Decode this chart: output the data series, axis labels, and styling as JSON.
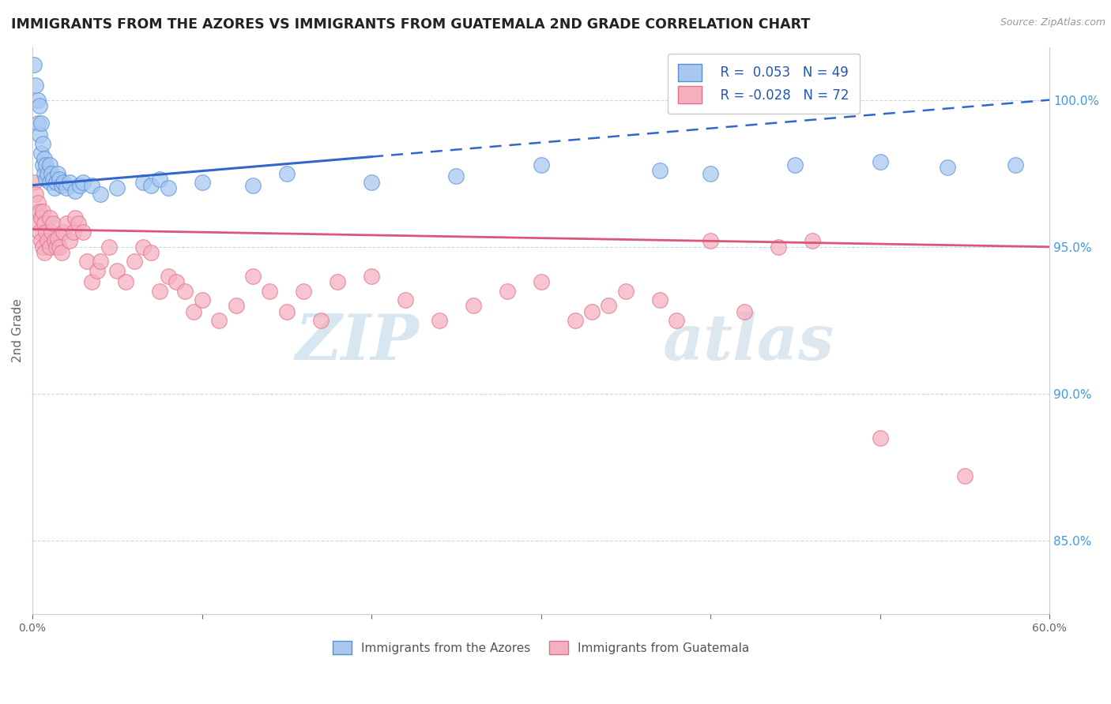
{
  "title": "IMMIGRANTS FROM THE AZORES VS IMMIGRANTS FROM GUATEMALA 2ND GRADE CORRELATION CHART",
  "source": "Source: ZipAtlas.com",
  "ylabel": "2nd Grade",
  "xmin": 0.0,
  "xmax": 60.0,
  "ymin": 82.5,
  "ymax": 101.8,
  "yticks_right": [
    85.0,
    90.0,
    95.0,
    100.0
  ],
  "blue_R": 0.053,
  "blue_N": 49,
  "pink_R": -0.028,
  "pink_N": 72,
  "blue_color": "#A8C8F0",
  "pink_color": "#F5B0C0",
  "blue_edge_color": "#5590D8",
  "pink_edge_color": "#E07090",
  "blue_line_color": "#3366CC",
  "pink_line_color": "#DD5577",
  "watermark_zip": "ZIP",
  "watermark_atlas": "atlas",
  "blue_trend_x0": 0.0,
  "blue_trend_y0": 97.1,
  "blue_trend_x1": 60.0,
  "blue_trend_y1": 100.0,
  "blue_solid_end": 20.0,
  "pink_trend_x0": 0.0,
  "pink_trend_y0": 95.6,
  "pink_trend_x1": 60.0,
  "pink_trend_y1": 95.0,
  "blue_scatter_x": [
    0.1,
    0.2,
    0.3,
    0.3,
    0.4,
    0.4,
    0.5,
    0.5,
    0.6,
    0.6,
    0.7,
    0.7,
    0.8,
    0.8,
    0.9,
    1.0,
    1.0,
    1.1,
    1.2,
    1.3,
    1.4,
    1.5,
    1.6,
    1.7,
    1.8,
    2.0,
    2.2,
    2.5,
    2.8,
    3.0,
    3.5,
    4.0,
    5.0,
    6.5,
    7.0,
    7.5,
    8.0,
    10.0,
    13.0,
    15.0,
    20.0,
    25.0,
    30.0,
    37.0,
    40.0,
    45.0,
    50.0,
    54.0,
    58.0
  ],
  "blue_scatter_y": [
    101.2,
    100.5,
    100.0,
    99.2,
    99.8,
    98.8,
    99.2,
    98.2,
    98.5,
    97.8,
    98.0,
    97.5,
    97.8,
    97.3,
    97.5,
    97.8,
    97.2,
    97.5,
    97.3,
    97.0,
    97.2,
    97.5,
    97.3,
    97.1,
    97.2,
    97.0,
    97.2,
    96.9,
    97.1,
    97.2,
    97.1,
    96.8,
    97.0,
    97.2,
    97.1,
    97.3,
    97.0,
    97.2,
    97.1,
    97.5,
    97.2,
    97.4,
    97.8,
    97.6,
    97.5,
    97.8,
    97.9,
    97.7,
    97.8
  ],
  "pink_scatter_x": [
    0.1,
    0.2,
    0.3,
    0.3,
    0.4,
    0.4,
    0.5,
    0.5,
    0.6,
    0.6,
    0.7,
    0.7,
    0.8,
    0.9,
    1.0,
    1.0,
    1.1,
    1.2,
    1.3,
    1.4,
    1.5,
    1.6,
    1.7,
    1.8,
    2.0,
    2.2,
    2.4,
    2.5,
    2.7,
    3.0,
    3.2,
    3.5,
    3.8,
    4.0,
    4.5,
    5.0,
    5.5,
    6.0,
    6.5,
    7.0,
    7.5,
    8.0,
    8.5,
    9.0,
    9.5,
    10.0,
    11.0,
    12.0,
    13.0,
    14.0,
    15.0,
    16.0,
    17.0,
    18.0,
    20.0,
    22.0,
    24.0,
    26.0,
    28.0,
    30.0,
    32.0,
    33.0,
    34.0,
    35.0,
    37.0,
    38.0,
    40.0,
    42.0,
    44.0,
    46.0,
    50.0,
    55.0
  ],
  "pink_scatter_y": [
    97.2,
    96.8,
    96.5,
    95.8,
    96.2,
    95.5,
    96.0,
    95.2,
    96.2,
    95.0,
    95.8,
    94.8,
    95.5,
    95.2,
    96.0,
    95.0,
    95.5,
    95.8,
    95.2,
    95.0,
    95.3,
    95.0,
    94.8,
    95.5,
    95.8,
    95.2,
    95.5,
    96.0,
    95.8,
    95.5,
    94.5,
    93.8,
    94.2,
    94.5,
    95.0,
    94.2,
    93.8,
    94.5,
    95.0,
    94.8,
    93.5,
    94.0,
    93.8,
    93.5,
    92.8,
    93.2,
    92.5,
    93.0,
    94.0,
    93.5,
    92.8,
    93.5,
    92.5,
    93.8,
    94.0,
    93.2,
    92.5,
    93.0,
    93.5,
    93.8,
    92.5,
    92.8,
    93.0,
    93.5,
    93.2,
    92.5,
    95.2,
    92.8,
    95.0,
    95.2,
    88.5,
    87.2
  ]
}
